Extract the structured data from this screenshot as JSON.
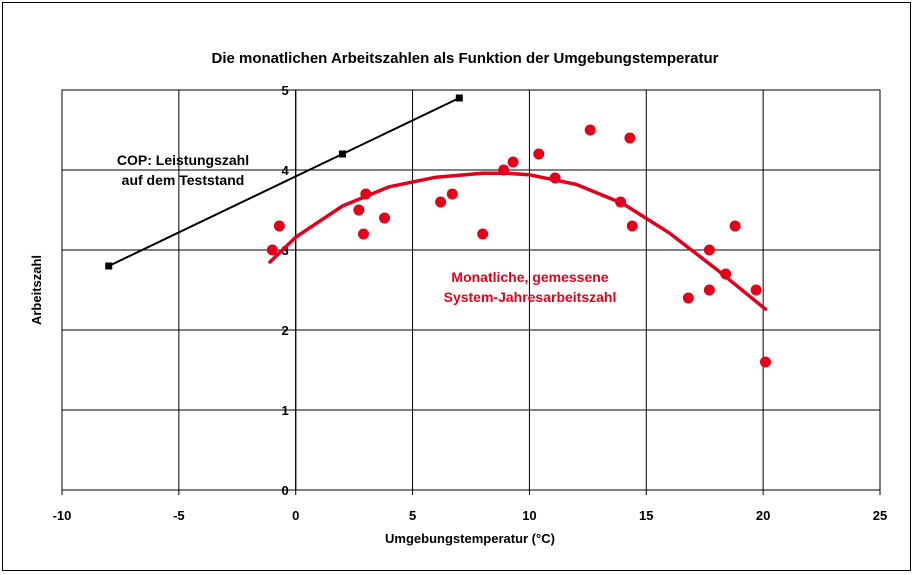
{
  "chart_data": {
    "type": "scatter",
    "title": "Die monatlichen Arbeitszahlen als Funktion der Umgebungstemperatur",
    "xlabel": "Umgebungstemperatur (°C)",
    "ylabel": "Arbeitszahl",
    "xlim": [
      -10,
      25
    ],
    "ylim": [
      0,
      5
    ],
    "xticks": [
      -10,
      -5,
      0,
      5,
      10,
      15,
      20,
      25
    ],
    "yticks": [
      0,
      1,
      2,
      3,
      4,
      5
    ],
    "grid": true,
    "colors": {
      "measured": "#e3001b",
      "cop": "#000000"
    },
    "series": [
      {
        "key": "cop",
        "mode": "line+square-markers",
        "x": [
          -8,
          2,
          7
        ],
        "y": [
          2.8,
          4.2,
          4.9
        ]
      },
      {
        "key": "measured",
        "mode": "scatter",
        "x": [
          -1,
          -0.7,
          2.7,
          2.9,
          3.0,
          3.8,
          6.2,
          6.7,
          8.0,
          8.9,
          9.3,
          10.4,
          11.1,
          12.6,
          13.9,
          14.3,
          14.4,
          16.8,
          17.7,
          17.7,
          18.4,
          18.8,
          19.7,
          20.1
        ],
        "y": [
          3.0,
          3.3,
          3.5,
          3.2,
          3.7,
          3.4,
          3.6,
          3.7,
          3.2,
          4.0,
          4.1,
          4.2,
          3.9,
          4.5,
          3.6,
          4.4,
          3.3,
          2.4,
          3.0,
          2.5,
          2.7,
          3.3,
          2.5,
          1.6
        ]
      },
      {
        "key": "trend",
        "mode": "curve",
        "x": [
          -1.1,
          0,
          2,
          4,
          6,
          8,
          9,
          10,
          12,
          14,
          16,
          18,
          20.1
        ],
        "y": [
          2.85,
          3.16,
          3.55,
          3.79,
          3.91,
          3.96,
          3.96,
          3.94,
          3.82,
          3.58,
          3.21,
          2.76,
          2.26
        ]
      }
    ],
    "annotations": {
      "cop_line1": "COP:  Leistungszahl",
      "cop_line2": "auf dem Teststand",
      "measured_line1": "Monatliche, gemessene",
      "measured_line2": "System-Jahresarbeitszahl"
    }
  }
}
